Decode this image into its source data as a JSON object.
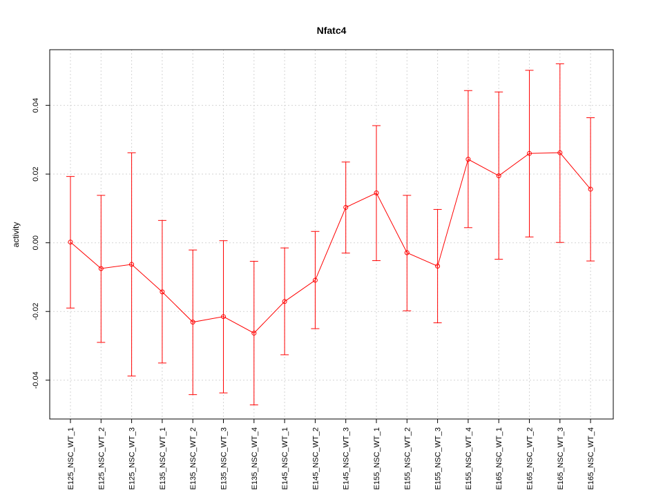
{
  "chart_data": {
    "type": "line",
    "title": "Nfatc4",
    "xlabel": "",
    "ylabel": "activity",
    "categories": [
      "E125_NSC_WT_1",
      "E125_NSC_WT_2",
      "E125_NSC_WT_3",
      "E135_NSC_WT_1",
      "E135_NSC_WT_2",
      "E135_NSC_WT_3",
      "E135_NSC_WT_4",
      "E145_NSC_WT_1",
      "E145_NSC_WT_2",
      "E145_NSC_WT_3",
      "E155_NSC_WT_1",
      "E155_NSC_WT_2",
      "E155_NSC_WT_3",
      "E155_NSC_WT_4",
      "E165_NSC_WT_1",
      "E165_NSC_WT_2",
      "E165_NSC_WT_3",
      "E165_NSC_WT_4"
    ],
    "series": [
      {
        "values": [
          0.0002,
          -0.0075,
          -0.0063,
          -0.0143,
          -0.0231,
          -0.0215,
          -0.0263,
          -0.0171,
          -0.0109,
          0.0103,
          0.0145,
          -0.0029,
          -0.0068,
          0.0243,
          0.0195,
          0.026,
          0.0262,
          0.0156
        ],
        "upper": [
          0.0193,
          0.0138,
          0.0262,
          0.0065,
          -0.0021,
          0.0006,
          -0.0054,
          -0.0015,
          0.0033,
          0.0235,
          0.0341,
          0.0138,
          0.0097,
          0.0443,
          0.0439,
          0.0502,
          0.0521,
          0.0364
        ],
        "lower": [
          -0.019,
          -0.029,
          -0.0388,
          -0.035,
          -0.0442,
          -0.0437,
          -0.0472,
          -0.0326,
          -0.025,
          -0.003,
          -0.0052,
          -0.0198,
          -0.0233,
          0.0044,
          -0.0048,
          0.0017,
          0.0001,
          -0.0053
        ]
      }
    ],
    "yticks": [
      -0.04,
      -0.02,
      0.0,
      0.02,
      0.04
    ],
    "ytick_labels": [
      "-0.04",
      "-0.02",
      "0.00",
      "0.02",
      "0.04"
    ],
    "ylim": [
      -0.0513,
      0.0562
    ],
    "grid": true,
    "colors": {
      "series": "#ff0000",
      "grid": "#d3d3d3",
      "axis": "#000000"
    }
  }
}
